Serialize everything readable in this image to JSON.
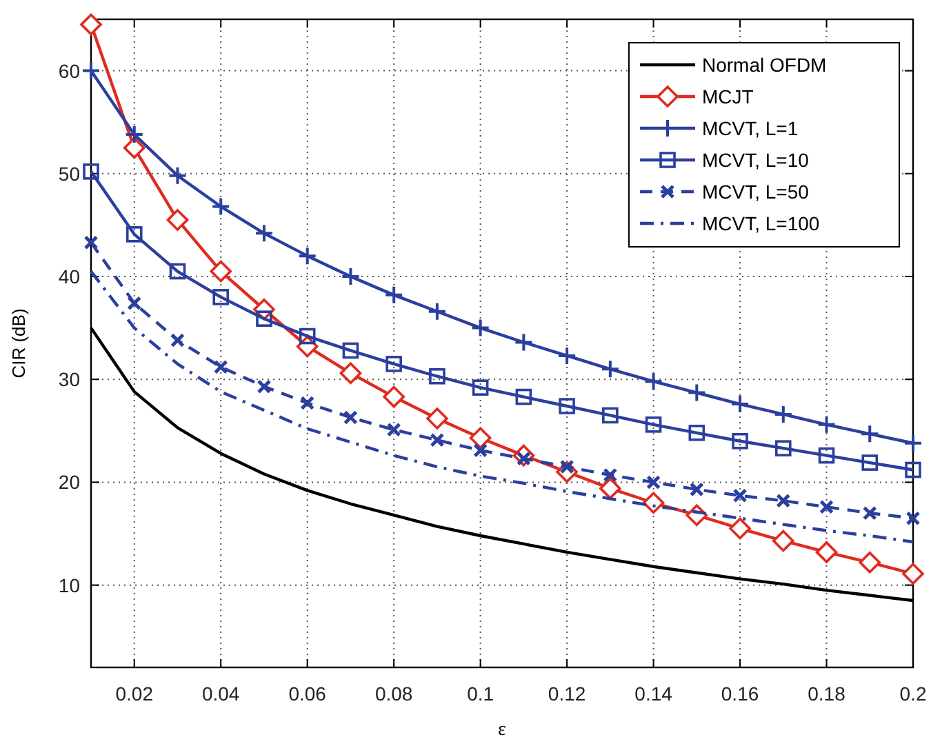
{
  "chart_data": {
    "type": "line",
    "xlabel": "ε",
    "ylabel": "CIR (dB)",
    "x": [
      0.01,
      0.02,
      0.03,
      0.04,
      0.05,
      0.06,
      0.07,
      0.08,
      0.09,
      0.1,
      0.11,
      0.12,
      0.13,
      0.14,
      0.15,
      0.16,
      0.17,
      0.18,
      0.19,
      0.2
    ],
    "xlim": [
      0.01,
      0.2
    ],
    "xticks": [
      0.02,
      0.04,
      0.06,
      0.08,
      0.1,
      0.12,
      0.14,
      0.16,
      0.18,
      0.2
    ],
    "ylim": [
      2,
      65
    ],
    "yticks": [
      10,
      20,
      30,
      40,
      50,
      60
    ],
    "grid": true,
    "legend": "top right",
    "series": [
      {
        "name": "Normal OFDM",
        "color": "#000000",
        "marker": "none",
        "line_style": "solid",
        "values": [
          35,
          28.8,
          25.3,
          22.8,
          20.8,
          19.2,
          17.9,
          16.8,
          15.7,
          14.8,
          14.0,
          13.2,
          12.5,
          11.8,
          11.2,
          10.6,
          10.1,
          9.5,
          9.0,
          8.5
        ]
      },
      {
        "name": "MCJT",
        "color": "#e02b20",
        "marker": "diamond",
        "line_style": "solid",
        "values": [
          64.5,
          52.5,
          45.5,
          40.5,
          36.8,
          33.2,
          30.6,
          28.3,
          26.2,
          24.3,
          22.6,
          21.0,
          19.4,
          18.0,
          16.8,
          15.5,
          14.3,
          13.2,
          12.2,
          11.1
        ]
      },
      {
        "name": "MCVT, L=1",
        "color": "#2b3f9e",
        "marker": "cross",
        "line_style": "solid",
        "values": [
          60,
          53.8,
          49.8,
          46.8,
          44.2,
          42.0,
          40.0,
          38.2,
          36.6,
          35.0,
          33.6,
          32.3,
          31.0,
          29.8,
          28.7,
          27.6,
          26.6,
          25.6,
          24.7,
          23.8
        ]
      },
      {
        "name": "MCVT, L=10",
        "color": "#2b3f9e",
        "marker": "square",
        "line_style": "solid",
        "values": [
          50.2,
          44.1,
          40.5,
          38.0,
          35.9,
          34.2,
          32.8,
          31.5,
          30.3,
          29.2,
          28.3,
          27.4,
          26.5,
          25.6,
          24.8,
          24.0,
          23.3,
          22.6,
          21.9,
          21.2
        ]
      },
      {
        "name": "MCVT, L=50",
        "color": "#2b3f9e",
        "marker": "x",
        "line_style": "dashed",
        "values": [
          43.3,
          37.4,
          33.8,
          31.2,
          29.3,
          27.7,
          26.3,
          25.1,
          24.1,
          23.1,
          22.3,
          21.5,
          20.7,
          20.0,
          19.3,
          18.7,
          18.2,
          17.6,
          17.0,
          16.5
        ]
      },
      {
        "name": "MCVT, L=100",
        "color": "#2b3f9e",
        "marker": "none",
        "line_style": "dashdot",
        "values": [
          40.5,
          35.0,
          31.5,
          28.8,
          27.0,
          25.2,
          23.9,
          22.6,
          21.5,
          20.6,
          19.9,
          19.1,
          18.4,
          17.7,
          17.1,
          16.5,
          15.9,
          15.3,
          14.8,
          14.2
        ]
      }
    ]
  }
}
